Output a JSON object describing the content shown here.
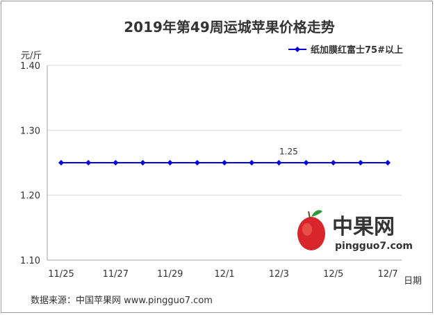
{
  "chart_data": {
    "type": "line",
    "title": "2019年第49周运城苹果价格走势",
    "ylabel": "元/斤",
    "xlabel": "日期",
    "ylim": [
      1.1,
      1.4
    ],
    "yticks": [
      "1.40",
      "1.30",
      "1.20",
      "1.10"
    ],
    "x": [
      "11/25",
      "11/26",
      "11/27",
      "11/28",
      "11/29",
      "11/30",
      "12/1",
      "12/2",
      "12/3",
      "12/4",
      "12/5",
      "12/6",
      "12/7"
    ],
    "xtick_labels": [
      "11/25",
      "11/27",
      "11/29",
      "12/1",
      "12/3",
      "12/5",
      "12/7"
    ],
    "series": [
      {
        "name": "纸加膜红富士75#以上",
        "color": "#0000dd",
        "values": [
          1.25,
          1.25,
          1.25,
          1.25,
          1.25,
          1.25,
          1.25,
          1.25,
          1.25,
          1.25,
          1.25,
          1.25,
          1.25
        ]
      }
    ],
    "data_labels": [
      {
        "index": 8,
        "text": "1.25"
      }
    ],
    "legend_position": "top-right",
    "grid": true
  },
  "watermark": {
    "brand": "中果网",
    "url": "pingguo7.com",
    "colors": {
      "green": "#2e9a3a",
      "red": "#d8262c",
      "orange": "#e3752a"
    }
  },
  "footer": {
    "source": "数据来源：中国苹果网 www.pingguo7.com"
  }
}
